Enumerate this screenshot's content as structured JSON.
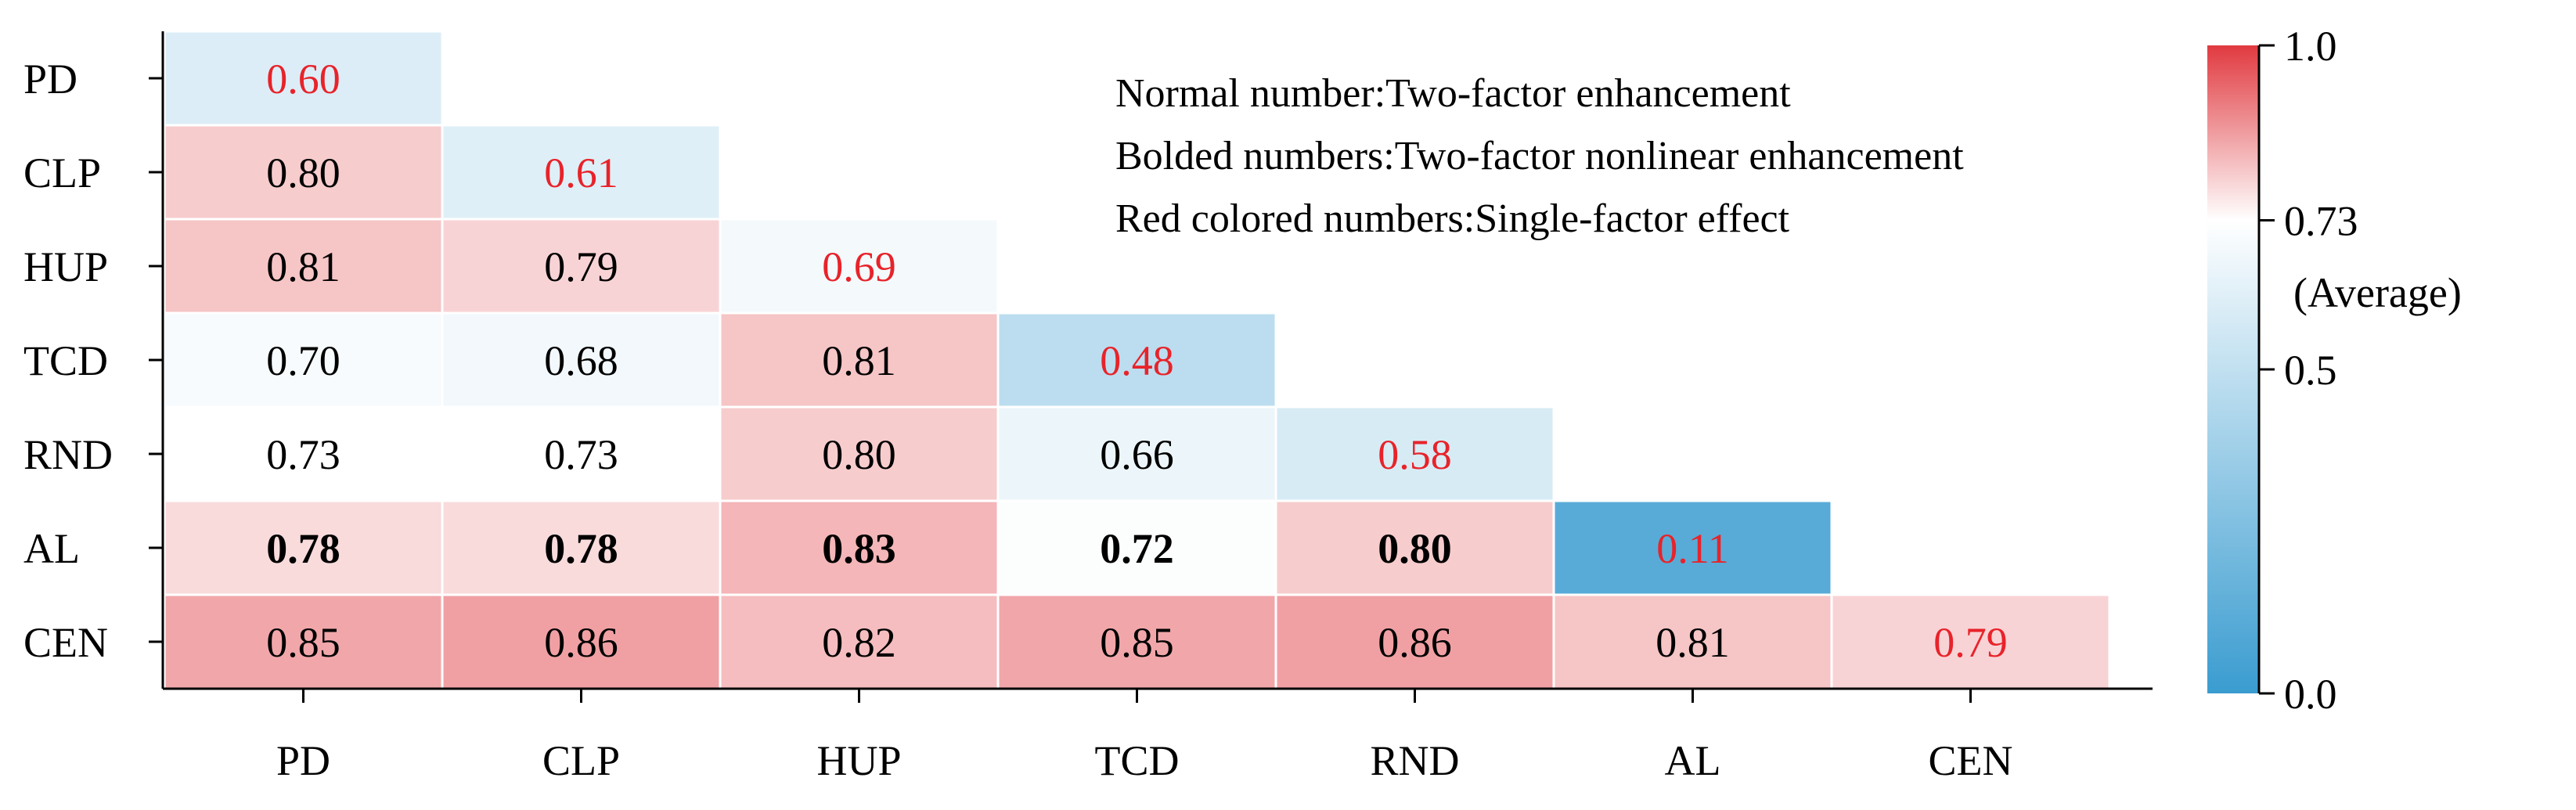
{
  "chart_data": {
    "type": "heatmap",
    "layout": "lower-triangular",
    "categories": [
      "PD",
      "CLP",
      "HUP",
      "TCD",
      "RND",
      "AL",
      "CEN"
    ],
    "rows": [
      {
        "label": "PD",
        "values": [
          0.6
        ]
      },
      {
        "label": "CLP",
        "values": [
          0.8,
          0.61
        ]
      },
      {
        "label": "HUP",
        "values": [
          0.81,
          0.79,
          0.69
        ]
      },
      {
        "label": "TCD",
        "values": [
          0.7,
          0.68,
          0.81,
          0.48
        ]
      },
      {
        "label": "RND",
        "values": [
          0.73,
          0.73,
          0.8,
          0.66,
          0.58
        ]
      },
      {
        "label": "AL",
        "values": [
          0.78,
          0.78,
          0.83,
          0.72,
          0.8,
          0.11
        ]
      },
      {
        "label": "CEN",
        "values": [
          0.85,
          0.86,
          0.82,
          0.85,
          0.86,
          0.81,
          0.79
        ]
      }
    ],
    "bold_rows": [
      "AL"
    ],
    "diagonal_text_color": "#e8232a",
    "normal_text_color": "#000000",
    "colorscale": {
      "min": 0.0,
      "mid": 0.73,
      "max": 1.0,
      "min_color": "#3a9cd0",
      "mid_color": "#ffffff",
      "max_color": "#e03a40",
      "ticks": [
        {
          "value": 1.0,
          "label": "1.0"
        },
        {
          "value": 0.73,
          "label": "0.73"
        },
        {
          "value": 0.5,
          "label": "0.5"
        },
        {
          "value": 0.0,
          "label": "0.0"
        }
      ],
      "mid_note": "(Average)"
    },
    "notes": [
      "Normal number:Two-factor enhancement",
      "Bolded numbers:Two-factor nonlinear enhancement",
      "Red colored numbers:Single-factor effect"
    ]
  }
}
